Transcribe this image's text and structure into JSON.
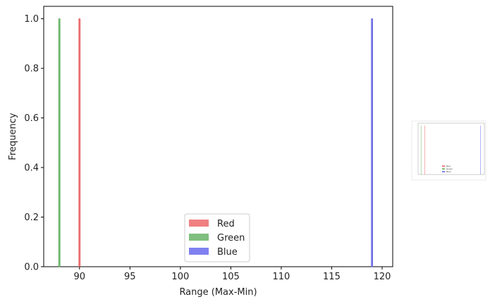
{
  "chart_data": {
    "type": "histogram",
    "xlabel": "Range (Max-Min)",
    "ylabel": "Frequency",
    "xlim": [
      86.45,
      121.05
    ],
    "ylim": [
      0,
      1.05
    ],
    "x_ticks": [
      90,
      95,
      100,
      105,
      110,
      115,
      120
    ],
    "y_ticks": [
      0.0,
      0.2,
      0.4,
      0.6,
      0.8,
      1.0
    ],
    "y_tick_labels": [
      "0.0",
      "0.2",
      "0.4",
      "0.6",
      "0.8",
      "1.0"
    ],
    "grid": false,
    "legend_position": "lower-center",
    "series": [
      {
        "name": "Red",
        "color": "#f08080",
        "edge": "#e03a3a",
        "values": [
          {
            "x": 90,
            "count": 1
          }
        ]
      },
      {
        "name": "Green",
        "color": "#7fbf7f",
        "edge": "#3f9f3f",
        "values": [
          {
            "x": 88,
            "count": 1
          }
        ]
      },
      {
        "name": "Blue",
        "color": "#8080f0",
        "edge": "#4a4ad8",
        "values": [
          {
            "x": 119,
            "count": 1
          }
        ]
      }
    ]
  }
}
